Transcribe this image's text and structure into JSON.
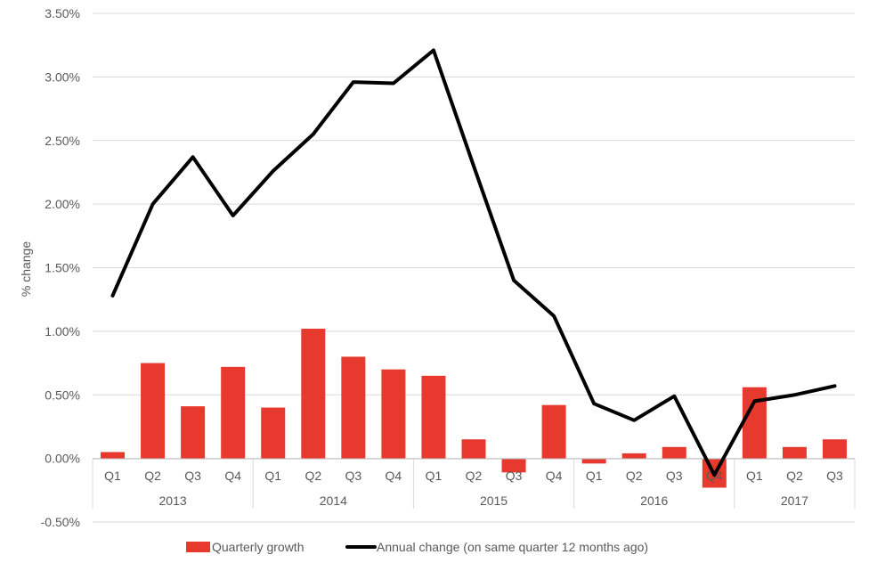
{
  "chart_data": {
    "type": "bar+line",
    "ylabel": "% change",
    "ylim": [
      -0.5,
      3.5
    ],
    "yticks": [
      "-0.50%",
      "0.00%",
      "0.50%",
      "1.00%",
      "1.50%",
      "2.00%",
      "2.50%",
      "3.00%",
      "3.50%"
    ],
    "ytick_values": [
      -0.5,
      0,
      0.5,
      1.0,
      1.5,
      2.0,
      2.5,
      3.0,
      3.5
    ],
    "grid": true,
    "legend_position": "bottom",
    "categories": [
      "Q1",
      "Q2",
      "Q3",
      "Q4",
      "Q1",
      "Q2",
      "Q3",
      "Q4",
      "Q1",
      "Q2",
      "Q3",
      "Q4",
      "Q1",
      "Q2",
      "Q3",
      "Q4",
      "Q1",
      "Q2",
      "Q3"
    ],
    "years": [
      {
        "label": "2013",
        "start": 0,
        "count": 4
      },
      {
        "label": "2014",
        "start": 4,
        "count": 4
      },
      {
        "label": "2015",
        "start": 8,
        "count": 4
      },
      {
        "label": "2016",
        "start": 12,
        "count": 4
      },
      {
        "label": "2017",
        "start": 16,
        "count": 3
      }
    ],
    "series": [
      {
        "name": "Quarterly growth",
        "kind": "bar",
        "color": "#e8392f",
        "values": [
          0.05,
          0.75,
          0.41,
          0.72,
          0.4,
          1.02,
          0.8,
          0.7,
          0.65,
          0.15,
          -0.11,
          0.42,
          -0.04,
          0.04,
          0.09,
          -0.23,
          0.56,
          0.09,
          0.15
        ]
      },
      {
        "name": "Annual change (on same quarter 12 months ago)",
        "kind": "line",
        "color": "#000000",
        "values": [
          1.28,
          2.0,
          2.37,
          1.91,
          2.26,
          2.55,
          2.96,
          2.95,
          3.21,
          2.3,
          1.4,
          1.12,
          0.43,
          0.3,
          0.49,
          -0.13,
          0.45,
          0.5,
          0.57
        ]
      }
    ]
  }
}
